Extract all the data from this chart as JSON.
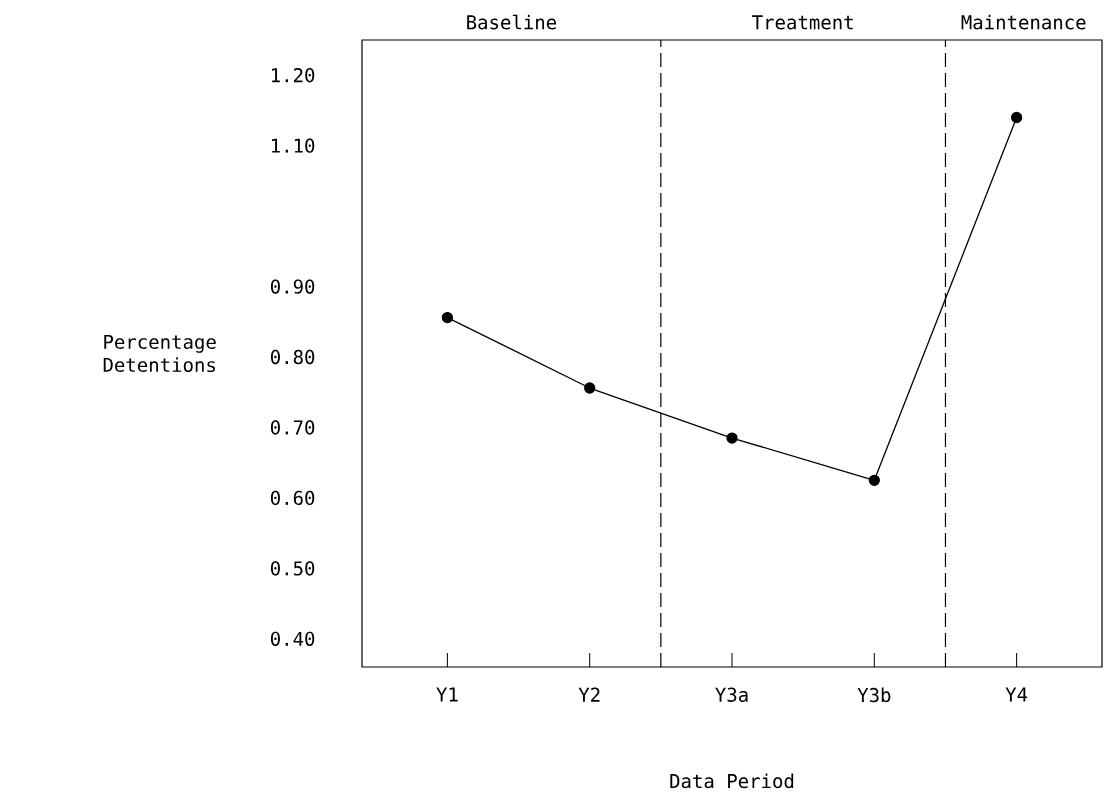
{
  "chart_data": {
    "type": "line",
    "xlabel": "Data Period",
    "ylabel": "Percentage Detentions",
    "categories": [
      "Y1",
      "Y2",
      "Y3a",
      "Y3b",
      "Y4"
    ],
    "series": [
      {
        "color": "#000000",
        "values": [
          0.856,
          0.756,
          0.685,
          0.625,
          1.14
        ]
      }
    ],
    "ylim": [
      0.36,
      1.25
    ],
    "yticks": [
      {
        "value": 0.4,
        "label": "0.40"
      },
      {
        "value": 0.5,
        "label": "0.50"
      },
      {
        "value": 0.6,
        "label": "0.60"
      },
      {
        "value": 0.7,
        "label": "0.70"
      },
      {
        "value": 0.8,
        "label": "0.80"
      },
      {
        "value": 0.9,
        "label": "0.90"
      },
      {
        "value": 1.1,
        "label": "1.10"
      },
      {
        "value": 1.2,
        "label": "1.20"
      }
    ],
    "annotations": [
      "Baseline",
      "Treatment",
      "Maintenance"
    ],
    "marker": "circle",
    "line_style": "solid",
    "grid": false
  }
}
